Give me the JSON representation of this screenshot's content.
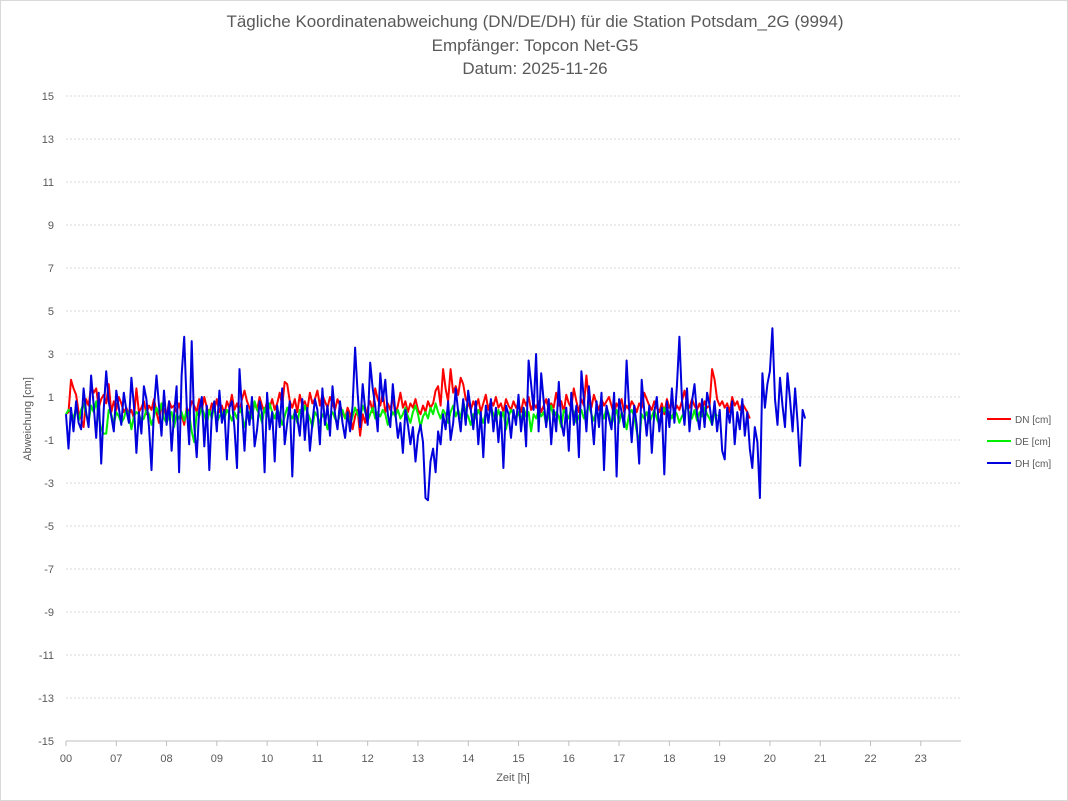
{
  "chart_data": {
    "type": "line",
    "title_lines": [
      "Tägliche Koordinatenabweichung (DN/DE/DH) für die Station Potsdam_2G (9994)",
      "Empfänger: Topcon Net-G5",
      "Datum: 2025-11-26"
    ],
    "xlabel": "Zeit [h]",
    "ylabel": "Abweichung [cm]",
    "ylim": [
      -15,
      15
    ],
    "yticks": [
      15,
      13,
      11,
      9,
      7,
      5,
      3,
      1,
      -1,
      -3,
      -5,
      -7,
      -9,
      -11,
      -13,
      -15
    ],
    "xlim": [
      0,
      17.8
    ],
    "xtick_labels": [
      "00",
      "07",
      "08",
      "09",
      "10",
      "11",
      "12",
      "13",
      "14",
      "15",
      "16",
      "17",
      "18",
      "19",
      "20",
      "21",
      "22",
      "23"
    ],
    "grid": true,
    "legend_position": "right",
    "series": [
      {
        "name": "DN [cm]",
        "color": "#ff0000",
        "x_start": 0,
        "x_step": 0.05,
        "values": [
          0.2,
          0.3,
          1.8,
          1.4,
          1.1,
          0.3,
          0.0,
          -0.4,
          0.9,
          0.6,
          1.5,
          1.2,
          1.4,
          0.5,
          0.9,
          1.1,
          0.7,
          1.6,
          0.3,
          0.8,
          0.4,
          1.0,
          0.7,
          0.3,
          0.5,
          0.2,
          0.4,
          0.0,
          1.4,
          0.3,
          0.5,
          0.8,
          0.2,
          0.6,
          0.4,
          0.9,
          0.3,
          -0.2,
          0.7,
          0.4,
          0.1,
          0.8,
          0.5,
          0.6,
          0.3,
          0.7,
          0.2,
          -0.3,
          0.5,
          0.3,
          0.8,
          0.6,
          0.3,
          0.9,
          0.4,
          1.0,
          0.5,
          0.2,
          0.7,
          0.4,
          0.9,
          0.3,
          0.6,
          0.2,
          0.8,
          0.5,
          1.1,
          0.4,
          0.7,
          0.3,
          0.9,
          1.3,
          0.8,
          0.5,
          0.2,
          0.7,
          0.4,
          1.0,
          0.6,
          0.3,
          0.8,
          0.5,
          0.9,
          0.4,
          0.7,
          1.2,
          0.6,
          1.7,
          1.6,
          0.8,
          0.5,
          0.9,
          0.3,
          1.1,
          0.6,
          0.8,
          0.4,
          1.2,
          0.7,
          0.9,
          1.3,
          0.6,
          1.1,
          0.8,
          0.5,
          1.0,
          0.7,
          0.4,
          0.9,
          0.6,
          0.3,
          0.0,
          0.5,
          0.2,
          -0.5,
          0.1,
          0.4,
          -0.8,
          0.2,
          -0.2,
          0.5,
          0.8,
          0.3,
          1.4,
          0.9,
          0.6,
          1.2,
          0.3,
          0.7,
          0.4,
          1.0,
          0.2,
          0.6,
          1.2,
          0.5,
          0.8,
          0.3,
          0.7,
          0.5,
          0.9,
          0.4,
          0.2,
          0.6,
          0.3,
          0.8,
          0.5,
          0.7,
          1.3,
          1.5,
          0.6,
          2.3,
          1.4,
          0.8,
          2.3,
          1.2,
          1.5,
          1.1,
          1.9,
          1.6,
          0.9,
          0.7,
          0.4,
          0.8,
          0.5,
          0.9,
          0.3,
          0.7,
          1.1,
          0.4,
          0.8,
          0.6,
          1.0,
          0.5,
          0.7,
          0.3,
          0.9,
          0.6,
          0.4,
          0.8,
          0.5,
          0.7,
          0.3,
          0.9,
          0.6,
          1.0,
          0.4,
          0.7,
          0.5,
          0.8,
          0.3,
          0.6,
          0.9,
          0.4,
          0.7,
          0.5,
          1.2,
          0.6,
          0.8,
          0.3,
          1.1,
          0.7,
          0.5,
          1.4,
          0.8,
          0.3,
          0.9,
          0.6,
          2.0,
          0.8,
          0.5,
          1.1,
          0.7,
          0.4,
          0.9,
          0.6,
          0.8,
          1.0,
          0.6,
          0.2,
          0.7,
          0.5,
          0.9,
          0.3,
          0.6,
          0.4,
          0.8,
          0.6,
          0.3,
          0.7,
          0.5,
          1.2,
          0.9,
          0.6,
          0.4,
          0.8,
          0.5,
          0.3,
          0.7,
          0.2,
          0.9,
          0.5,
          0.7,
          0.3,
          0.6,
          0.4,
          0.8,
          1.3,
          0.7,
          0.5,
          0.9,
          0.6,
          0.4,
          0.7,
          0.3,
          0.8,
          0.5,
          0.6,
          2.3,
          1.8,
          0.9,
          0.6,
          0.8,
          0.5,
          0.7,
          0.3,
          1.0,
          0.6,
          0.8,
          0.4,
          0.7,
          0.5,
          0.3,
          0.0
        ]
      },
      {
        "name": "DE [cm]",
        "color": "#00ee00",
        "x_start": 0,
        "x_step": 0.05,
        "values": [
          0.2,
          0.4,
          0.3,
          0.0,
          0.5,
          -0.1,
          0.4,
          0.7,
          0.2,
          -0.2,
          0.6,
          0.3,
          0.8,
          0.1,
          -0.5,
          -0.7,
          -0.7,
          0.4,
          0.2,
          -0.3,
          0.3,
          0.1,
          -0.2,
          0.0,
          0.4,
          0.2,
          -0.5,
          0.1,
          0.3,
          0.2,
          -0.1,
          0.0,
          0.4,
          0.2,
          -0.3,
          0.1,
          0.5,
          0.2,
          0.7,
          0.0,
          -0.2,
          0.1,
          0.3,
          -0.4,
          0.2,
          0.0,
          0.3,
          -0.1,
          0.4,
          0.2,
          -0.6,
          -1.1,
          0.3,
          0.1,
          0.5,
          0.2,
          -0.3,
          0.4,
          0.0,
          0.6,
          -0.2,
          0.1,
          0.3,
          0.0,
          0.4,
          0.2,
          -0.1,
          0.3,
          0.0,
          0.5,
          0.2,
          -0.4,
          0.1,
          0.3,
          0.0,
          0.8,
          0.4,
          0.2,
          -0.2,
          0.5,
          0.1,
          0.7,
          0.3,
          0.0,
          0.4,
          0.2,
          -0.3,
          0.1,
          0.5,
          0.2,
          0.0,
          0.3,
          -0.2,
          0.4,
          0.1,
          0.6,
          0.3,
          0.0,
          -0.4,
          0.3,
          0.1,
          -0.2,
          0.2,
          0.0,
          -0.5,
          0.1,
          0.3,
          0.0,
          -0.2,
          0.2,
          0.4,
          0.0,
          0.3,
          -0.3,
          0.1,
          0.5,
          0.2,
          0.0,
          0.6,
          0.3,
          -0.1,
          0.2,
          0.5,
          0.0,
          0.3,
          0.1,
          0.4,
          0.2,
          -0.3,
          0.0,
          0.3,
          0.1,
          0.4,
          0.0,
          0.2,
          0.5,
          0.1,
          -0.2,
          0.3,
          0.6,
          0.2,
          -0.4,
          0.1,
          0.3,
          0.0,
          0.5,
          0.2,
          0.7,
          0.3,
          0.0,
          0.4,
          0.2,
          -0.2,
          0.3,
          0.6,
          0.1,
          0.4,
          0.0,
          0.8,
          0.3,
          0.1,
          -0.3,
          0.2,
          0.0,
          0.4,
          0.1,
          -0.2,
          0.3,
          0.0,
          0.5,
          0.2,
          -0.1,
          0.4,
          0.0,
          0.3,
          -0.5,
          0.1,
          0.4,
          0.2,
          0.0,
          0.3,
          -0.2,
          0.5,
          0.1,
          0.3,
          -0.6,
          0.2,
          0.0,
          0.4,
          0.1,
          0.3,
          -0.3,
          0.2,
          0.6,
          0.0,
          0.3,
          0.1,
          -0.4,
          0.4,
          0.2,
          0.0,
          0.5,
          0.3,
          -0.2,
          0.1,
          0.4,
          0.0,
          0.3,
          0.6,
          0.2,
          -0.1,
          0.4,
          0.1,
          0.3,
          0.0,
          0.5,
          0.2,
          -0.3,
          0.1,
          0.4,
          -0.2,
          0.3,
          0.0,
          -0.5,
          0.2,
          0.4,
          0.1,
          -0.6,
          -1.1,
          0.2,
          0.0,
          0.3,
          -0.2,
          0.1,
          0.4,
          0.0,
          -0.3,
          0.2,
          0.5,
          0.1,
          0.3,
          0.0,
          0.4,
          0.2,
          -0.2,
          0.1,
          0.3,
          0.6,
          0.2,
          0.0,
          0.4,
          -0.1,
          0.3,
          0.1,
          0.5,
          0.2,
          0.0,
          -0.3,
          0.3,
          0.1
        ]
      },
      {
        "name": "DH [cm]",
        "color": "#0000dd",
        "x_start": 0,
        "x_step": 0.05,
        "values": [
          0.2,
          -1.4,
          0.5,
          -0.6,
          0.8,
          -0.2,
          -0.5,
          1.4,
          0.3,
          -0.4,
          2.0,
          0.6,
          -0.9,
          1.2,
          -2.1,
          0.4,
          2.2,
          0.8,
          0.1,
          -0.6,
          1.3,
          0.5,
          -0.3,
          1.2,
          0.4,
          -0.2,
          1.9,
          0.6,
          -1.6,
          0.3,
          -0.7,
          1.5,
          0.9,
          -0.4,
          -2.4,
          0.5,
          2.0,
          0.6,
          -0.8,
          1.3,
          -0.3,
          0.8,
          -1.5,
          0.2,
          1.5,
          -2.5,
          2.0,
          3.8,
          0.6,
          -1.2,
          3.6,
          -0.3,
          -1.8,
          0.4,
          1.0,
          -1.3,
          0.6,
          -2.4,
          0.2,
          0.8,
          -0.6,
          1.3,
          -0.2,
          0.4,
          -1.9,
          0.5,
          0.8,
          -0.4,
          -2.3,
          2.3,
          0.4,
          -1.5,
          0.6,
          -0.3,
          1.0,
          -1.3,
          -0.5,
          0.8,
          0.2,
          -2.5,
          1.2,
          -0.5,
          0.3,
          -2.0,
          0.6,
          -0.4,
          1.4,
          -1.2,
          -0.2,
          0.8,
          -2.7,
          0.4,
          0.0,
          -0.8,
          0.9,
          -1.0,
          0.5,
          -1.5,
          -0.2,
          0.9,
          0.4,
          -1.2,
          1.4,
          -0.3,
          0.6,
          -0.8,
          1.5,
          0.2,
          -0.5,
          0.8,
          -0.2,
          -0.9,
          0.3,
          -0.6,
          0.6,
          3.3,
          1.2,
          -0.4,
          1.6,
          0.4,
          -0.3,
          2.6,
          1.4,
          0.6,
          -0.6,
          2.1,
          0.8,
          1.8,
          0.2,
          -0.4,
          1.6,
          0.3,
          -0.9,
          -0.2,
          -1.6,
          0.4,
          -0.3,
          -1.2,
          -0.4,
          -2.0,
          -0.8,
          -0.3,
          -1.1,
          -3.7,
          -3.8,
          -2.0,
          -1.4,
          -2.5,
          -0.6,
          -1.2,
          0.2,
          -0.5,
          0.8,
          -1.0,
          -0.2,
          1.4,
          0.3,
          -0.6,
          0.9,
          -0.3,
          1.3,
          0.4,
          -0.5,
          0.8,
          -1.2,
          0.3,
          -1.8,
          0.6,
          -0.2,
          0.9,
          -0.6,
          0.5,
          -1.1,
          0.3,
          -2.3,
          0.6,
          0.2,
          -0.9,
          0.4,
          -0.3,
          1.1,
          -0.6,
          0.5,
          -1.3,
          2.7,
          1.6,
          0.4,
          3.0,
          -0.6,
          2.1,
          0.8,
          -0.4,
          0.9,
          -1.2,
          0.4,
          -0.6,
          1.7,
          -0.2,
          -0.8,
          0.5,
          -1.5,
          1.2,
          -0.3,
          0.6,
          -1.8,
          2.2,
          0.9,
          -0.6,
          1.5,
          0.2,
          -1.2,
          0.8,
          -0.4,
          1.2,
          -2.4,
          0.6,
          0.0,
          -0.5,
          1.2,
          -2.7,
          0.9,
          0.3,
          -0.4,
          2.7,
          0.5,
          -1.1,
          0.6,
          -0.3,
          -2.1,
          1.8,
          0.4,
          -0.8,
          0.6,
          -1.6,
          0.3,
          1.0,
          -0.6,
          0.5,
          -2.6,
          0.8,
          -0.4,
          1.4,
          -0.2,
          1.5,
          3.8,
          0.9,
          -0.3,
          1.4,
          -0.6,
          0.8,
          1.6,
          0.2,
          -0.5,
          0.9,
          -0.4,
          1.2,
          0.6,
          -0.3,
          0.8,
          -0.6,
          0.4,
          -1.5,
          -1.9,
          0.5,
          -0.2,
          0.8,
          -1.2,
          0.3,
          -0.5,
          0.9,
          -0.8,
          0.3,
          -1.4,
          -2.3,
          -0.4,
          -1.1,
          -3.7,
          2.1,
          0.5,
          1.6,
          2.2,
          4.2,
          0.9,
          -0.3,
          1.9,
          0.6,
          -0.4,
          2.1,
          0.9,
          -0.6,
          1.4,
          -0.2,
          -2.2,
          0.4,
          0.0
        ]
      }
    ]
  }
}
